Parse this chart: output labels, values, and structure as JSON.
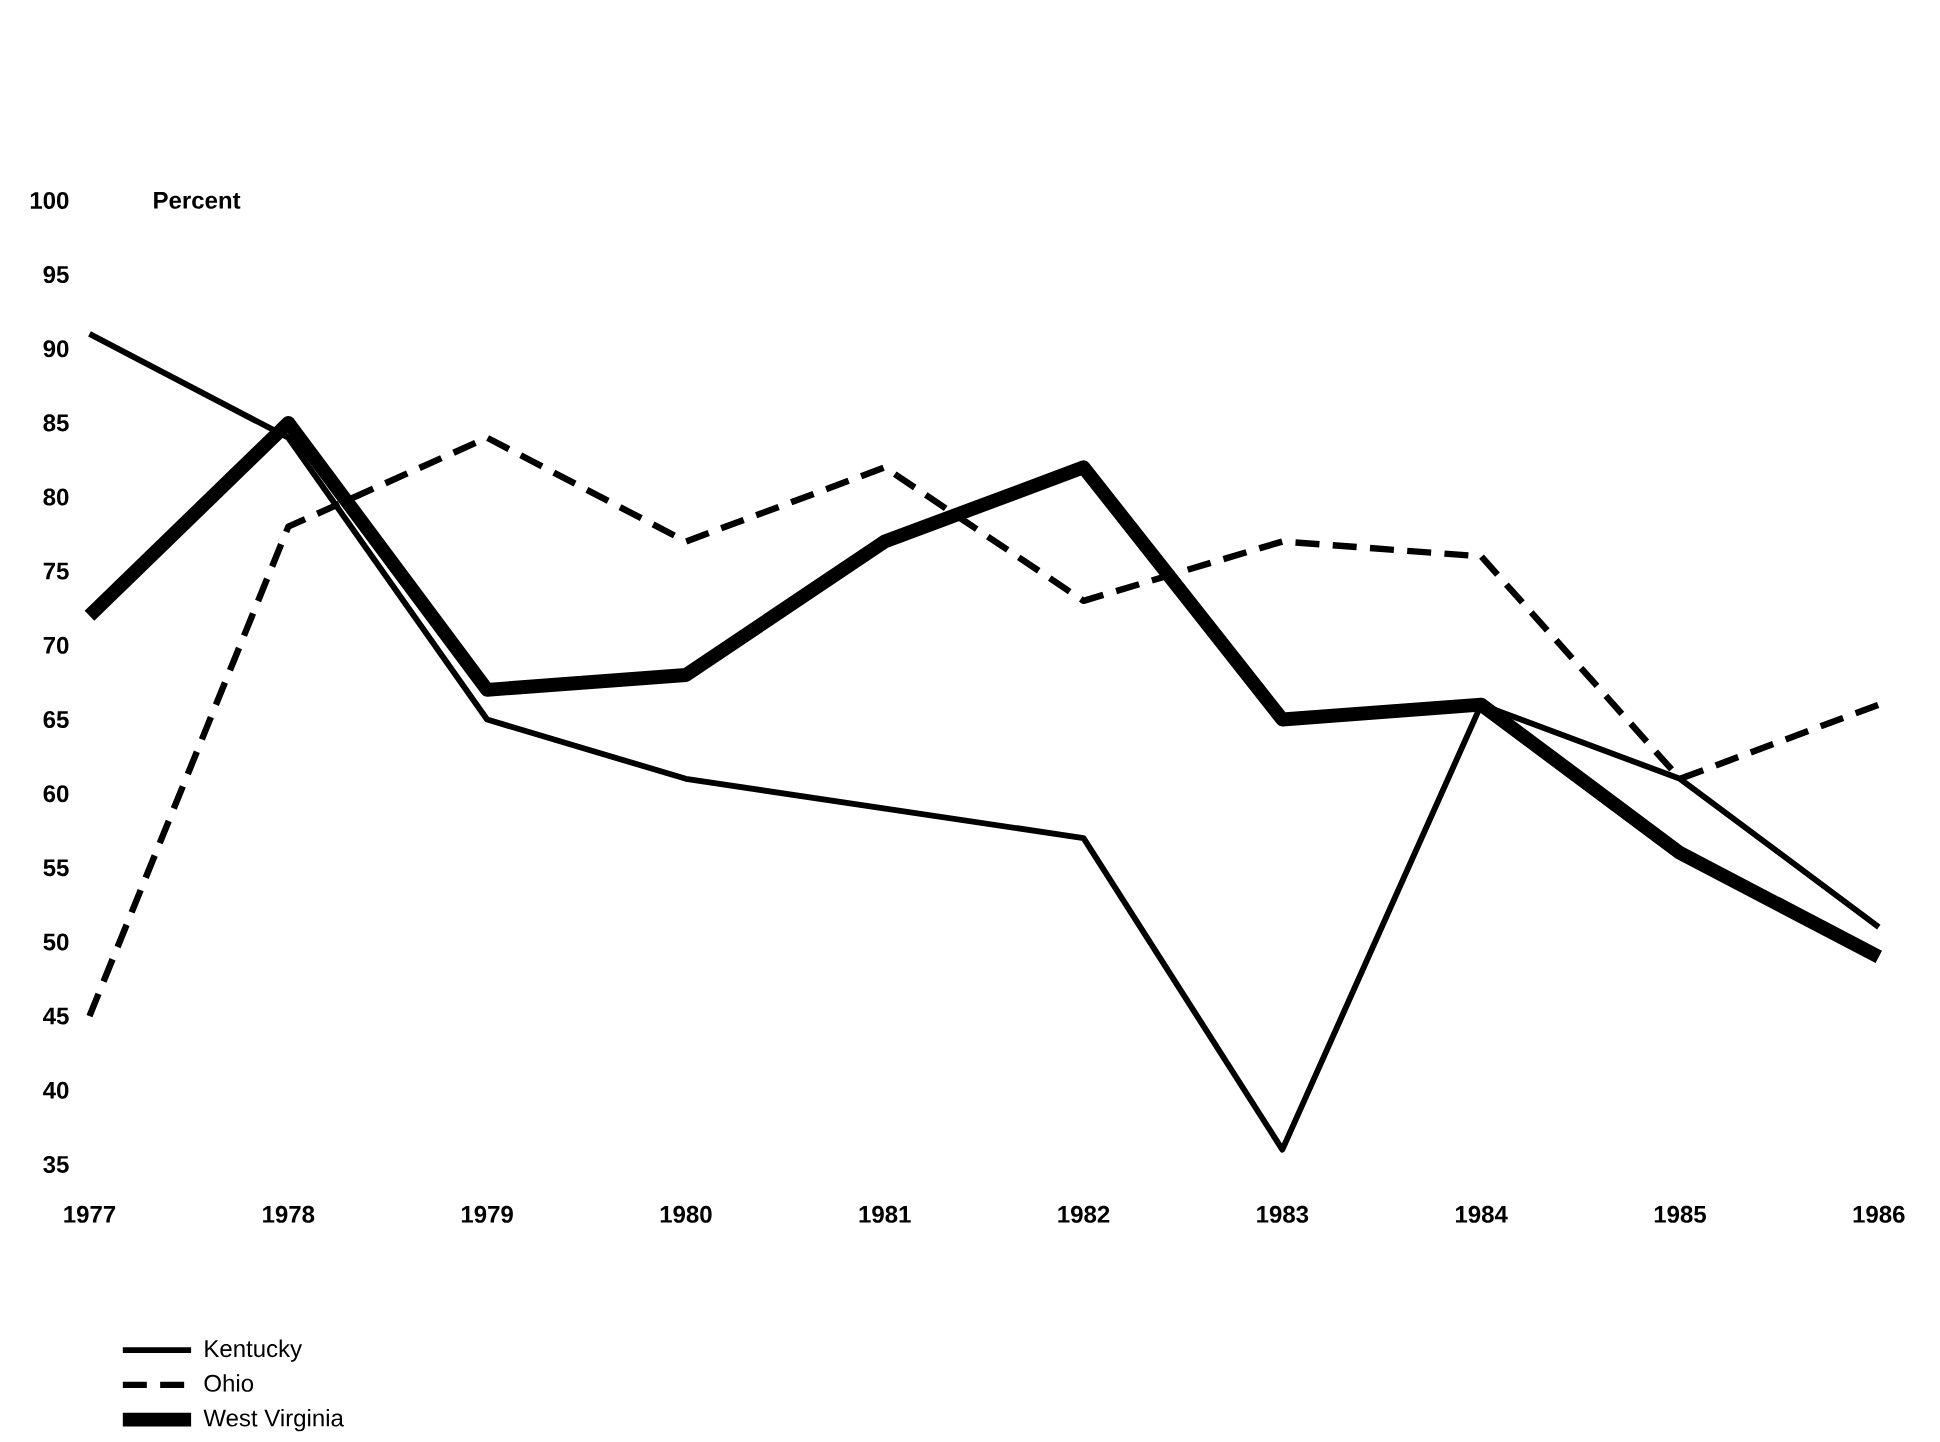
{
  "chart_data": {
    "type": "line",
    "ylabel": "Percent",
    "categories": [
      "1977",
      "1978",
      "1979",
      "1980",
      "1981",
      "1982",
      "1983",
      "1984",
      "1985",
      "1986"
    ],
    "ylim": [
      35,
      100
    ],
    "yticks": [
      35,
      40,
      45,
      50,
      55,
      60,
      65,
      70,
      75,
      80,
      85,
      90,
      95,
      100
    ],
    "legend": "bottom left",
    "series": [
      {
        "name": "Kentucky",
        "color": "#000000",
        "line_style": "solid",
        "values": [
          91,
          84,
          65,
          61,
          59,
          57,
          36,
          66,
          61,
          51
        ]
      },
      {
        "name": "Ohio",
        "color": "#000000",
        "line_style": "dashed",
        "values": [
          45,
          78,
          84,
          77,
          82,
          73,
          77,
          76,
          61,
          66
        ]
      },
      {
        "name": "West Virginia",
        "color": "#000000",
        "line_style": "solid",
        "values": [
          72,
          85,
          67,
          68,
          77,
          82,
          65,
          66,
          56,
          49
        ]
      }
    ]
  }
}
